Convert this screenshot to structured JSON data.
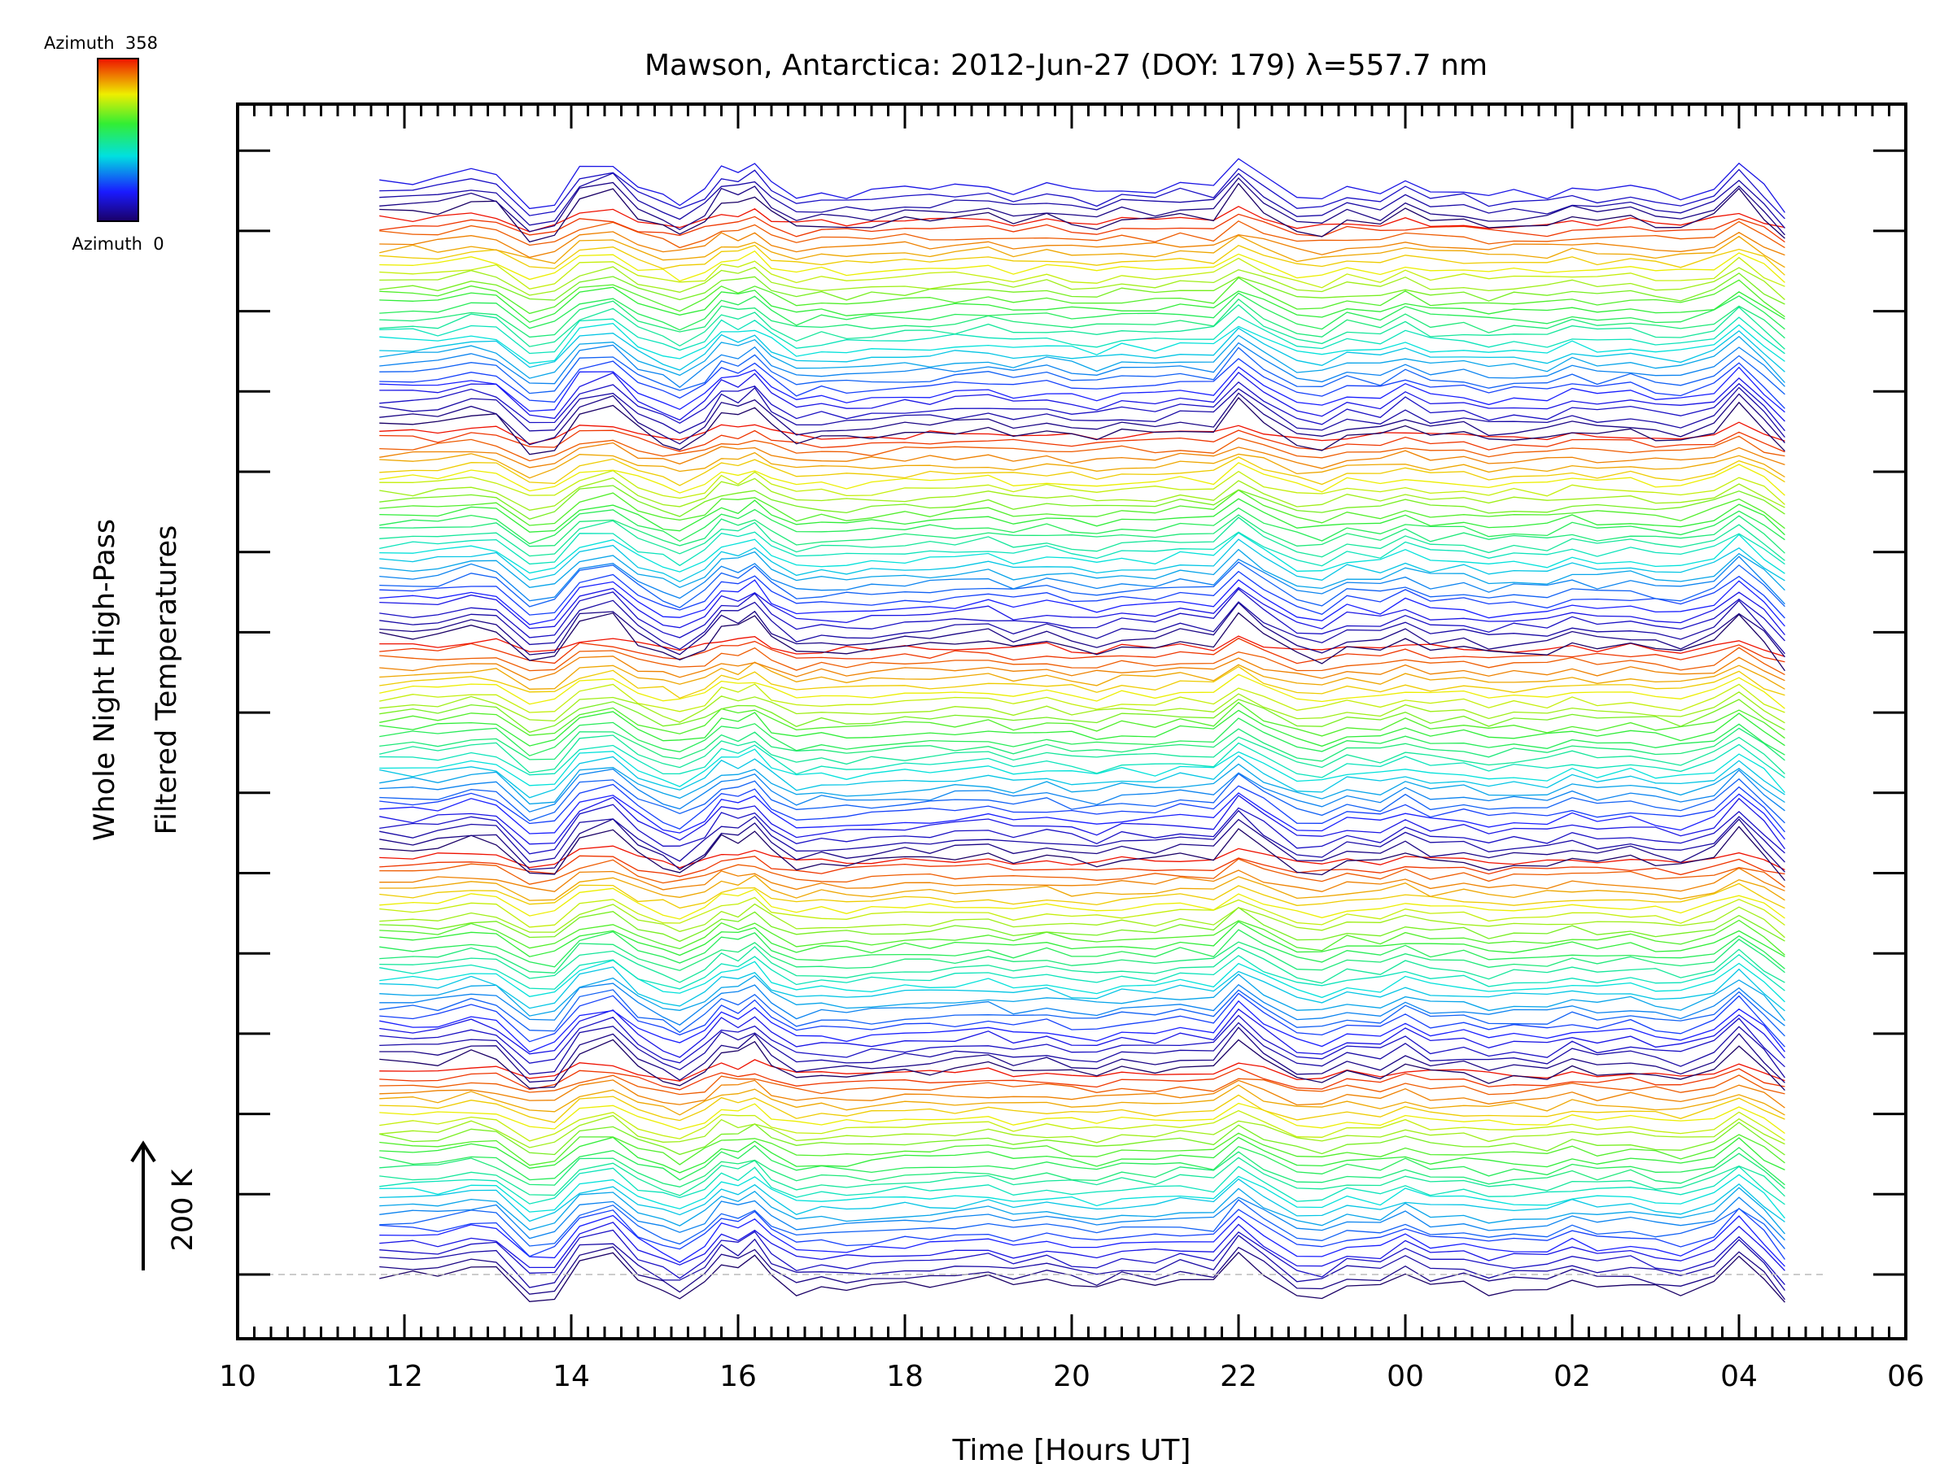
{
  "chart_data": {
    "type": "line",
    "title": "Mawson, Antarctica: 2012-Jun-27 (DOY: 179) λ=557.7 nm",
    "xlabel": "Time [Hours UT]",
    "ylabel_line1": "Whole Night High-Pass",
    "ylabel_line2": "Filtered Temperatures",
    "scale_label": "200 K",
    "x_tick_labels": [
      "10",
      "12",
      "14",
      "16",
      "18",
      "20",
      "22",
      "00",
      "02",
      "04",
      "06"
    ],
    "xlim_hours": [
      10,
      30
    ],
    "data_time_range_hours": [
      11.7,
      28.55
    ],
    "colorbar": {
      "top_label": "Azimuth  358",
      "bottom_label": "Azimuth  0",
      "colormap": "rainbow",
      "range": [
        0,
        358
      ]
    },
    "stacked_traces": 145,
    "grid": false,
    "legend": "none",
    "colors": {
      "axes": "#000000",
      "baseline": "#bbbbbb",
      "background": "#ffffff"
    },
    "profile_times": [
      11.7,
      12.1,
      12.4,
      12.8,
      13.1,
      13.5,
      13.8,
      14.1,
      14.5,
      14.8,
      15.1,
      15.3,
      15.6,
      15.8,
      16.0,
      16.2,
      16.4,
      16.7,
      17.0,
      17.3,
      17.6,
      18.0,
      18.3,
      18.6,
      19.0,
      19.3,
      19.7,
      20.0,
      20.3,
      20.6,
      21.0,
      21.3,
      21.7,
      22.0,
      22.3,
      22.7,
      23.0,
      23.3,
      23.7,
      24.0,
      24.3,
      24.7,
      25.0,
      25.3,
      25.7,
      26.0,
      26.3,
      26.7,
      27.0,
      27.3,
      27.7,
      28.0,
      28.3,
      28.55
    ],
    "profile_values": [
      0,
      0,
      0,
      10,
      6,
      -28,
      -24,
      12,
      20,
      -6,
      -18,
      -26,
      -10,
      12,
      8,
      18,
      -2,
      -18,
      -14,
      -16,
      -14,
      -10,
      -10,
      -8,
      -4,
      -12,
      -6,
      -12,
      -16,
      -8,
      -10,
      -4,
      -8,
      24,
      2,
      -20,
      -24,
      -10,
      -14,
      0,
      -12,
      -10,
      -18,
      -14,
      -16,
      -6,
      -12,
      -8,
      -14,
      -18,
      -6,
      20,
      -6,
      -32
    ]
  }
}
